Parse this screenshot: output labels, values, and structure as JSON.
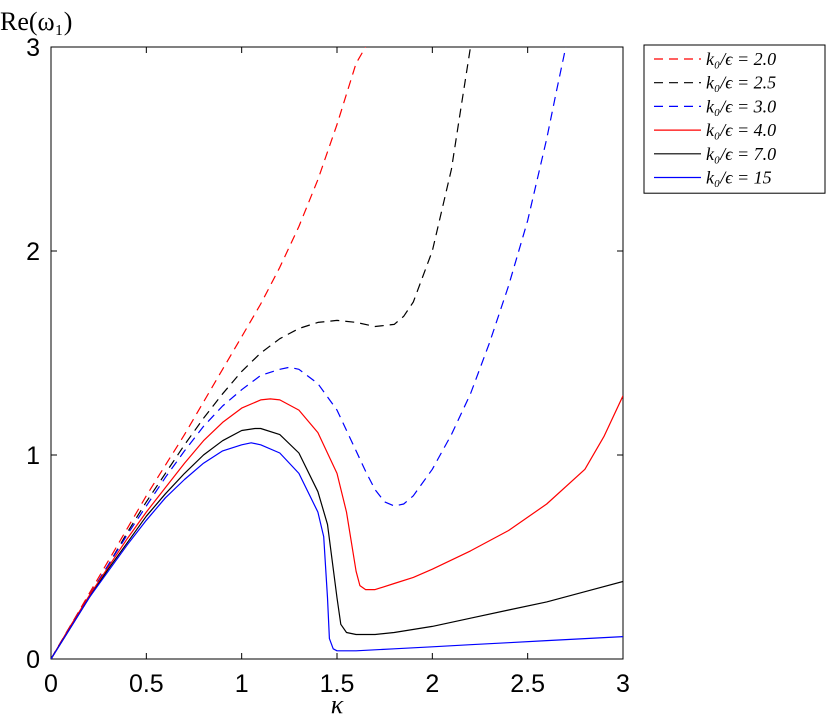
{
  "chart_data": {
    "type": "line",
    "title": "",
    "xlabel": "κ",
    "ylabel": "Re(ω₁)",
    "xlim": [
      0,
      3
    ],
    "ylim": [
      0,
      3
    ],
    "xticks": [
      0,
      0.5,
      1,
      1.5,
      2,
      2.5,
      3
    ],
    "xtick_labels": [
      "0",
      "0.5",
      "1",
      "1.5",
      "2",
      "2.5",
      "3"
    ],
    "yticks": [
      0,
      1,
      2,
      3
    ],
    "ytick_labels": [
      "0",
      "1",
      "2",
      "3"
    ],
    "grid": false,
    "legend_position": "outside-top-right",
    "series": [
      {
        "name": "k₀/ϵ = 2.0",
        "color": "#ff0000",
        "dash": "dashed",
        "x": [
          0,
          0.1,
          0.2,
          0.3,
          0.4,
          0.5,
          0.6,
          0.7,
          0.8,
          0.9,
          1.0,
          1.1,
          1.2,
          1.3,
          1.4,
          1.5,
          1.6,
          1.65
        ],
        "y": [
          0,
          0.16,
          0.32,
          0.48,
          0.64,
          0.8,
          0.95,
          1.1,
          1.26,
          1.42,
          1.58,
          1.74,
          1.92,
          2.12,
          2.35,
          2.62,
          2.92,
          3.0
        ]
      },
      {
        "name": "k₀/ϵ = 2.5",
        "color": "#000000",
        "dash": "dashed",
        "x": [
          0,
          0.1,
          0.2,
          0.3,
          0.4,
          0.5,
          0.6,
          0.7,
          0.8,
          0.9,
          1.0,
          1.1,
          1.2,
          1.3,
          1.4,
          1.5,
          1.6,
          1.7,
          1.8,
          1.85,
          1.9,
          2.0,
          2.1,
          2.15,
          2.2
        ],
        "y": [
          0,
          0.16,
          0.31,
          0.46,
          0.62,
          0.77,
          0.91,
          1.05,
          1.18,
          1.3,
          1.41,
          1.5,
          1.57,
          1.62,
          1.65,
          1.66,
          1.65,
          1.63,
          1.64,
          1.68,
          1.75,
          2.0,
          2.4,
          2.7,
          3.0
        ]
      },
      {
        "name": "k₀/ϵ = 3.0",
        "color": "#0000ff",
        "dash": "dashed",
        "x": [
          0,
          0.1,
          0.2,
          0.3,
          0.4,
          0.5,
          0.6,
          0.7,
          0.8,
          0.9,
          1.0,
          1.1,
          1.2,
          1.25,
          1.3,
          1.4,
          1.5,
          1.6,
          1.65,
          1.7,
          1.75,
          1.8,
          1.85,
          1.9,
          2.0,
          2.1,
          2.2,
          2.3,
          2.4,
          2.5,
          2.6,
          2.65,
          2.7
        ],
        "y": [
          0,
          0.16,
          0.31,
          0.46,
          0.61,
          0.75,
          0.89,
          1.02,
          1.14,
          1.24,
          1.32,
          1.39,
          1.42,
          1.43,
          1.42,
          1.35,
          1.22,
          1.02,
          0.92,
          0.83,
          0.77,
          0.75,
          0.76,
          0.8,
          0.93,
          1.1,
          1.3,
          1.55,
          1.83,
          2.15,
          2.55,
          2.78,
          3.0
        ]
      },
      {
        "name": "k₀/ϵ = 4.0",
        "color": "#ff0000",
        "dash": "solid",
        "x": [
          0,
          0.1,
          0.2,
          0.3,
          0.4,
          0.5,
          0.6,
          0.7,
          0.8,
          0.9,
          1.0,
          1.1,
          1.15,
          1.2,
          1.3,
          1.4,
          1.5,
          1.55,
          1.6,
          1.62,
          1.65,
          1.7,
          1.8,
          1.9,
          2.0,
          2.2,
          2.4,
          2.6,
          2.8,
          2.9,
          3.0
        ],
        "y": [
          0,
          0.16,
          0.31,
          0.45,
          0.59,
          0.72,
          0.84,
          0.96,
          1.07,
          1.16,
          1.23,
          1.27,
          1.275,
          1.27,
          1.22,
          1.11,
          0.91,
          0.72,
          0.43,
          0.36,
          0.34,
          0.34,
          0.37,
          0.4,
          0.44,
          0.53,
          0.63,
          0.76,
          0.93,
          1.09,
          1.29
        ]
      },
      {
        "name": "k₀/ϵ = 7.0",
        "color": "#000000",
        "dash": "solid",
        "x": [
          0,
          0.1,
          0.2,
          0.3,
          0.4,
          0.5,
          0.6,
          0.7,
          0.8,
          0.9,
          1.0,
          1.07,
          1.1,
          1.2,
          1.3,
          1.4,
          1.45,
          1.5,
          1.52,
          1.55,
          1.6,
          1.7,
          1.8,
          2.0,
          2.2,
          2.4,
          2.6,
          2.8,
          3.0
        ],
        "y": [
          0,
          0.15,
          0.3,
          0.44,
          0.57,
          0.7,
          0.81,
          0.91,
          1.0,
          1.07,
          1.12,
          1.13,
          1.13,
          1.1,
          1.01,
          0.82,
          0.66,
          0.3,
          0.17,
          0.13,
          0.12,
          0.12,
          0.13,
          0.16,
          0.2,
          0.24,
          0.28,
          0.33,
          0.38
        ]
      },
      {
        "name": "k₀/ϵ = 15",
        "color": "#0000ff",
        "dash": "solid",
        "x": [
          0,
          0.1,
          0.2,
          0.3,
          0.4,
          0.5,
          0.6,
          0.7,
          0.8,
          0.9,
          1.0,
          1.05,
          1.1,
          1.2,
          1.3,
          1.4,
          1.43,
          1.45,
          1.46,
          1.48,
          1.5,
          1.6,
          1.8,
          2.0,
          2.2,
          2.4,
          2.6,
          2.8,
          3.0
        ],
        "y": [
          0,
          0.15,
          0.3,
          0.43,
          0.56,
          0.68,
          0.79,
          0.88,
          0.96,
          1.02,
          1.05,
          1.06,
          1.05,
          1.01,
          0.91,
          0.72,
          0.6,
          0.3,
          0.1,
          0.05,
          0.04,
          0.04,
          0.05,
          0.06,
          0.07,
          0.08,
          0.09,
          0.1,
          0.11
        ]
      }
    ]
  }
}
